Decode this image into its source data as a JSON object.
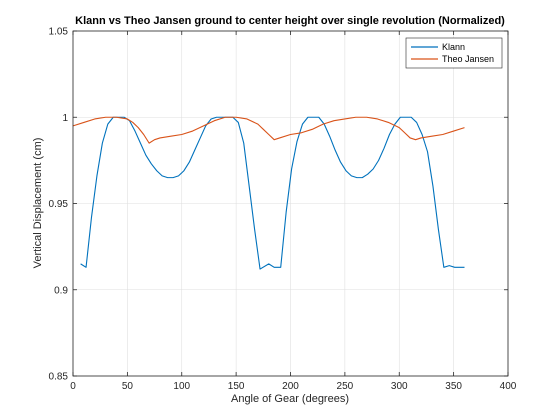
{
  "chart_data": {
    "type": "line",
    "title": "Klann vs Theo Jansen ground to center height over single revolution (Normalized)",
    "xlabel": "Angle of Gear (degrees)",
    "ylabel": "Vertical Displacement (cm)",
    "xlim": [
      0,
      400
    ],
    "ylim": [
      0.85,
      1.05
    ],
    "xticks": [
      0,
      50,
      100,
      150,
      200,
      250,
      300,
      350,
      400
    ],
    "xtick_labels": [
      "0",
      "50",
      "100",
      "150",
      "200",
      "250",
      "300",
      "350",
      "400"
    ],
    "yticks": [
      0.85,
      0.9,
      0.95,
      1.0,
      1.05
    ],
    "ytick_labels": [
      "0.85",
      "0.9",
      "0.95",
      "1",
      "1.05"
    ],
    "grid": true,
    "legend_position": "top-right",
    "series": [
      {
        "name": "Klann",
        "color": "#0072BD",
        "x": [
          7,
          12,
          17,
          22,
          27,
          32,
          37,
          42,
          47,
          52,
          57,
          62,
          67,
          72,
          77,
          82,
          87,
          92,
          97,
          102,
          107,
          112,
          117,
          122,
          127,
          132,
          137,
          142,
          147,
          152,
          157,
          162,
          167,
          172,
          180,
          185,
          191,
          196,
          201,
          206,
          211,
          216,
          221,
          226,
          231,
          236,
          241,
          246,
          251,
          256,
          261,
          266,
          271,
          276,
          281,
          286,
          291,
          296,
          301,
          306,
          311,
          316,
          321,
          326,
          331,
          336,
          341,
          346,
          351,
          355,
          360
        ],
        "y": [
          0.915,
          0.913,
          0.942,
          0.966,
          0.985,
          0.996,
          1.0,
          1.0,
          1.0,
          0.998,
          0.992,
          0.985,
          0.978,
          0.973,
          0.969,
          0.966,
          0.965,
          0.965,
          0.966,
          0.969,
          0.974,
          0.981,
          0.988,
          0.995,
          0.999,
          1.0,
          1.0,
          1.0,
          1.0,
          0.997,
          0.985,
          0.96,
          0.935,
          0.912,
          0.915,
          0.913,
          0.913,
          0.945,
          0.97,
          0.986,
          0.996,
          1.0,
          1.0,
          1.0,
          0.996,
          0.989,
          0.981,
          0.974,
          0.969,
          0.966,
          0.965,
          0.965,
          0.967,
          0.97,
          0.975,
          0.982,
          0.99,
          0.996,
          1.0,
          1.0,
          1.0,
          0.997,
          0.99,
          0.98,
          0.96,
          0.935,
          0.913,
          0.914,
          0.913,
          0.913,
          0.913
        ]
      },
      {
        "name": "Theo Jansen",
        "color": "#D95319",
        "x": [
          0,
          10,
          20,
          30,
          40,
          50,
          55,
          60,
          65,
          70,
          75,
          80,
          90,
          100,
          110,
          120,
          130,
          140,
          150,
          160,
          170,
          175,
          180,
          185,
          190,
          200,
          210,
          220,
          230,
          240,
          250,
          260,
          270,
          280,
          290,
          300,
          305,
          310,
          315,
          320,
          330,
          340,
          350,
          360
        ],
        "y": [
          0.995,
          0.997,
          0.999,
          1.0,
          1.0,
          0.999,
          0.997,
          0.994,
          0.99,
          0.985,
          0.987,
          0.988,
          0.989,
          0.99,
          0.992,
          0.995,
          0.998,
          1.0,
          1.0,
          0.999,
          0.996,
          0.993,
          0.99,
          0.987,
          0.988,
          0.99,
          0.991,
          0.993,
          0.996,
          0.998,
          0.999,
          1.0,
          1.0,
          0.999,
          0.997,
          0.994,
          0.991,
          0.988,
          0.987,
          0.988,
          0.989,
          0.99,
          0.992,
          0.994
        ]
      }
    ]
  }
}
